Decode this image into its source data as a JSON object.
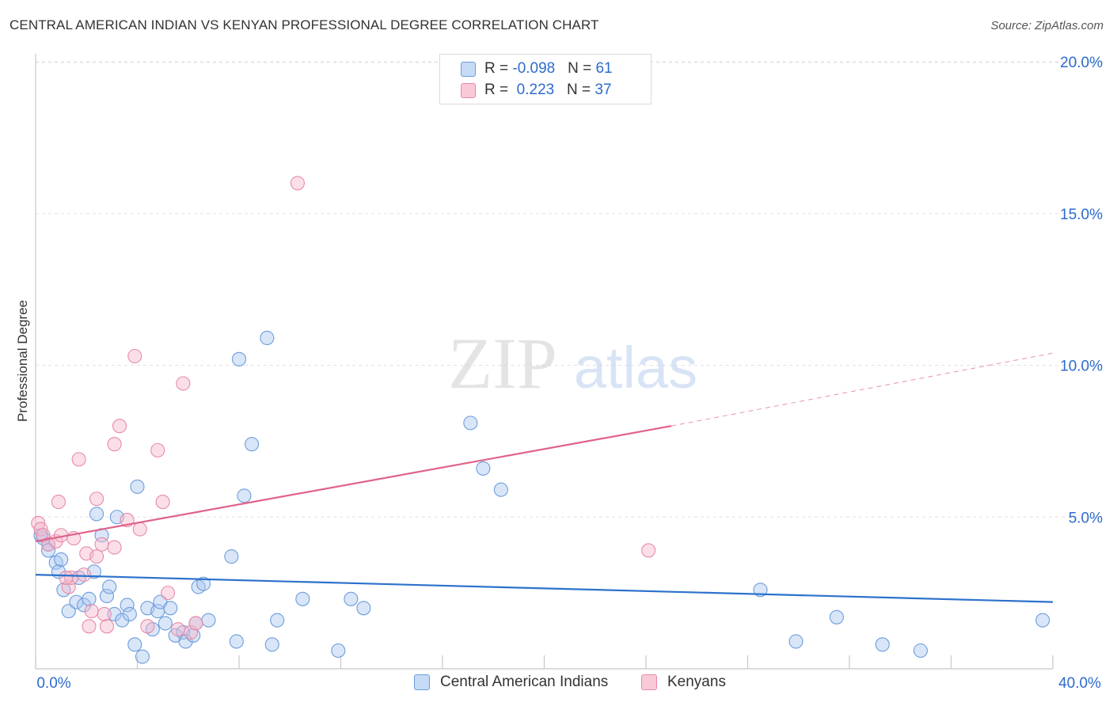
{
  "title": "CENTRAL AMERICAN INDIAN VS KENYAN PROFESSIONAL DEGREE CORRELATION CHART",
  "source": "Source: ZipAtlas.com",
  "watermark": {
    "zip": "ZIP",
    "atlas": "atlas"
  },
  "colors": {
    "blue_fill": "#aac8f0",
    "blue_stroke": "#6c9ddb",
    "blue_line": "#2d72cc",
    "pink_fill": "#f5b8cb",
    "pink_stroke": "#e88aa8",
    "pink_line": "#e0628b",
    "tick_label": "#2d6bcd"
  },
  "legend_top": {
    "rows": [
      {
        "r_label": "R = ",
        "r_value": "-0.098",
        "n_label": "N = ",
        "n_value": "61"
      },
      {
        "r_label": "R = ",
        "r_value": " 0.223",
        "n_label": "N = ",
        "n_value": "37"
      }
    ]
  },
  "legend_bottom": {
    "series1": "Central American Indians",
    "series2": "Kenyans"
  },
  "chart_data": {
    "type": "scatter",
    "title": "CENTRAL AMERICAN INDIAN VS KENYAN PROFESSIONAL DEGREE CORRELATION CHART",
    "xlabel": "",
    "ylabel": "Professional Degree",
    "xlim": [
      0,
      40
    ],
    "ylim": [
      0,
      20.5
    ],
    "x_tick_labels": [
      "0.0%",
      "40.0%"
    ],
    "y_ticks": [
      5,
      10,
      15,
      20
    ],
    "y_tick_labels": [
      "5.0%",
      "10.0%",
      "15.0%",
      "20.0%"
    ],
    "series": [
      {
        "name": "Central American Indians",
        "R": -0.098,
        "N": 61,
        "trend": {
          "x0": 0,
          "y0": 3.1,
          "x1": 40,
          "y1": 2.2
        },
        "points": [
          [
            0.3,
            4.3
          ],
          [
            0.5,
            4.1
          ],
          [
            0.5,
            3.9
          ],
          [
            0.8,
            3.5
          ],
          [
            0.9,
            3.2
          ],
          [
            1.0,
            3.6
          ],
          [
            1.1,
            2.6
          ],
          [
            1.3,
            1.9
          ],
          [
            1.6,
            2.2
          ],
          [
            1.7,
            3.0
          ],
          [
            1.9,
            2.1
          ],
          [
            2.1,
            2.3
          ],
          [
            2.3,
            3.2
          ],
          [
            2.4,
            5.1
          ],
          [
            2.6,
            4.4
          ],
          [
            2.8,
            2.4
          ],
          [
            2.9,
            2.7
          ],
          [
            3.1,
            1.8
          ],
          [
            3.2,
            5.0
          ],
          [
            3.4,
            1.6
          ],
          [
            3.6,
            2.1
          ],
          [
            3.7,
            1.8
          ],
          [
            3.9,
            0.8
          ],
          [
            4.0,
            6.0
          ],
          [
            4.2,
            0.4
          ],
          [
            4.4,
            2.0
          ],
          [
            4.6,
            1.3
          ],
          [
            4.8,
            1.9
          ],
          [
            4.9,
            2.2
          ],
          [
            5.1,
            1.5
          ],
          [
            5.3,
            2.0
          ],
          [
            5.5,
            1.1
          ],
          [
            5.8,
            1.2
          ],
          [
            5.9,
            0.9
          ],
          [
            6.2,
            1.1
          ],
          [
            6.3,
            1.5
          ],
          [
            6.4,
            2.7
          ],
          [
            6.6,
            2.8
          ],
          [
            6.8,
            1.6
          ],
          [
            7.7,
            3.7
          ],
          [
            7.9,
            0.9
          ],
          [
            8.0,
            10.2
          ],
          [
            8.2,
            5.7
          ],
          [
            8.5,
            7.4
          ],
          [
            9.1,
            10.9
          ],
          [
            9.3,
            0.8
          ],
          [
            9.5,
            1.6
          ],
          [
            10.5,
            2.3
          ],
          [
            11.9,
            0.6
          ],
          [
            12.4,
            2.3
          ],
          [
            12.9,
            2.0
          ],
          [
            17.1,
            8.1
          ],
          [
            17.6,
            6.6
          ],
          [
            18.3,
            5.9
          ],
          [
            28.5,
            2.6
          ],
          [
            29.9,
            0.9
          ],
          [
            31.5,
            1.7
          ],
          [
            33.3,
            0.8
          ],
          [
            34.8,
            0.6
          ],
          [
            39.6,
            1.6
          ],
          [
            0.2,
            4.4
          ]
        ]
      },
      {
        "name": "Kenyans",
        "R": 0.223,
        "N": 37,
        "trend": {
          "x0": 0,
          "y0": 4.2,
          "x1": 25,
          "y1": 8.0,
          "dash_to_x": 40,
          "dash_to_y": 10.4
        },
        "points": [
          [
            0.1,
            4.8
          ],
          [
            0.2,
            4.6
          ],
          [
            0.3,
            4.4
          ],
          [
            0.5,
            4.1
          ],
          [
            0.8,
            4.2
          ],
          [
            0.9,
            5.5
          ],
          [
            1.0,
            4.4
          ],
          [
            1.3,
            2.7
          ],
          [
            1.4,
            3.0
          ],
          [
            1.5,
            4.3
          ],
          [
            1.7,
            6.9
          ],
          [
            1.9,
            3.1
          ],
          [
            2.0,
            3.8
          ],
          [
            2.1,
            1.4
          ],
          [
            2.2,
            1.9
          ],
          [
            2.4,
            3.7
          ],
          [
            2.4,
            5.6
          ],
          [
            2.6,
            4.1
          ],
          [
            2.7,
            1.8
          ],
          [
            2.8,
            1.4
          ],
          [
            3.1,
            7.4
          ],
          [
            3.1,
            4.0
          ],
          [
            3.3,
            8.0
          ],
          [
            3.6,
            4.9
          ],
          [
            3.9,
            10.3
          ],
          [
            4.1,
            4.6
          ],
          [
            4.4,
            1.4
          ],
          [
            4.8,
            7.2
          ],
          [
            5.0,
            5.5
          ],
          [
            5.2,
            2.5
          ],
          [
            5.6,
            1.3
          ],
          [
            5.8,
            9.4
          ],
          [
            6.1,
            1.2
          ],
          [
            6.3,
            1.5
          ],
          [
            10.3,
            16.0
          ],
          [
            24.1,
            3.9
          ],
          [
            1.2,
            3.0
          ]
        ]
      }
    ]
  }
}
